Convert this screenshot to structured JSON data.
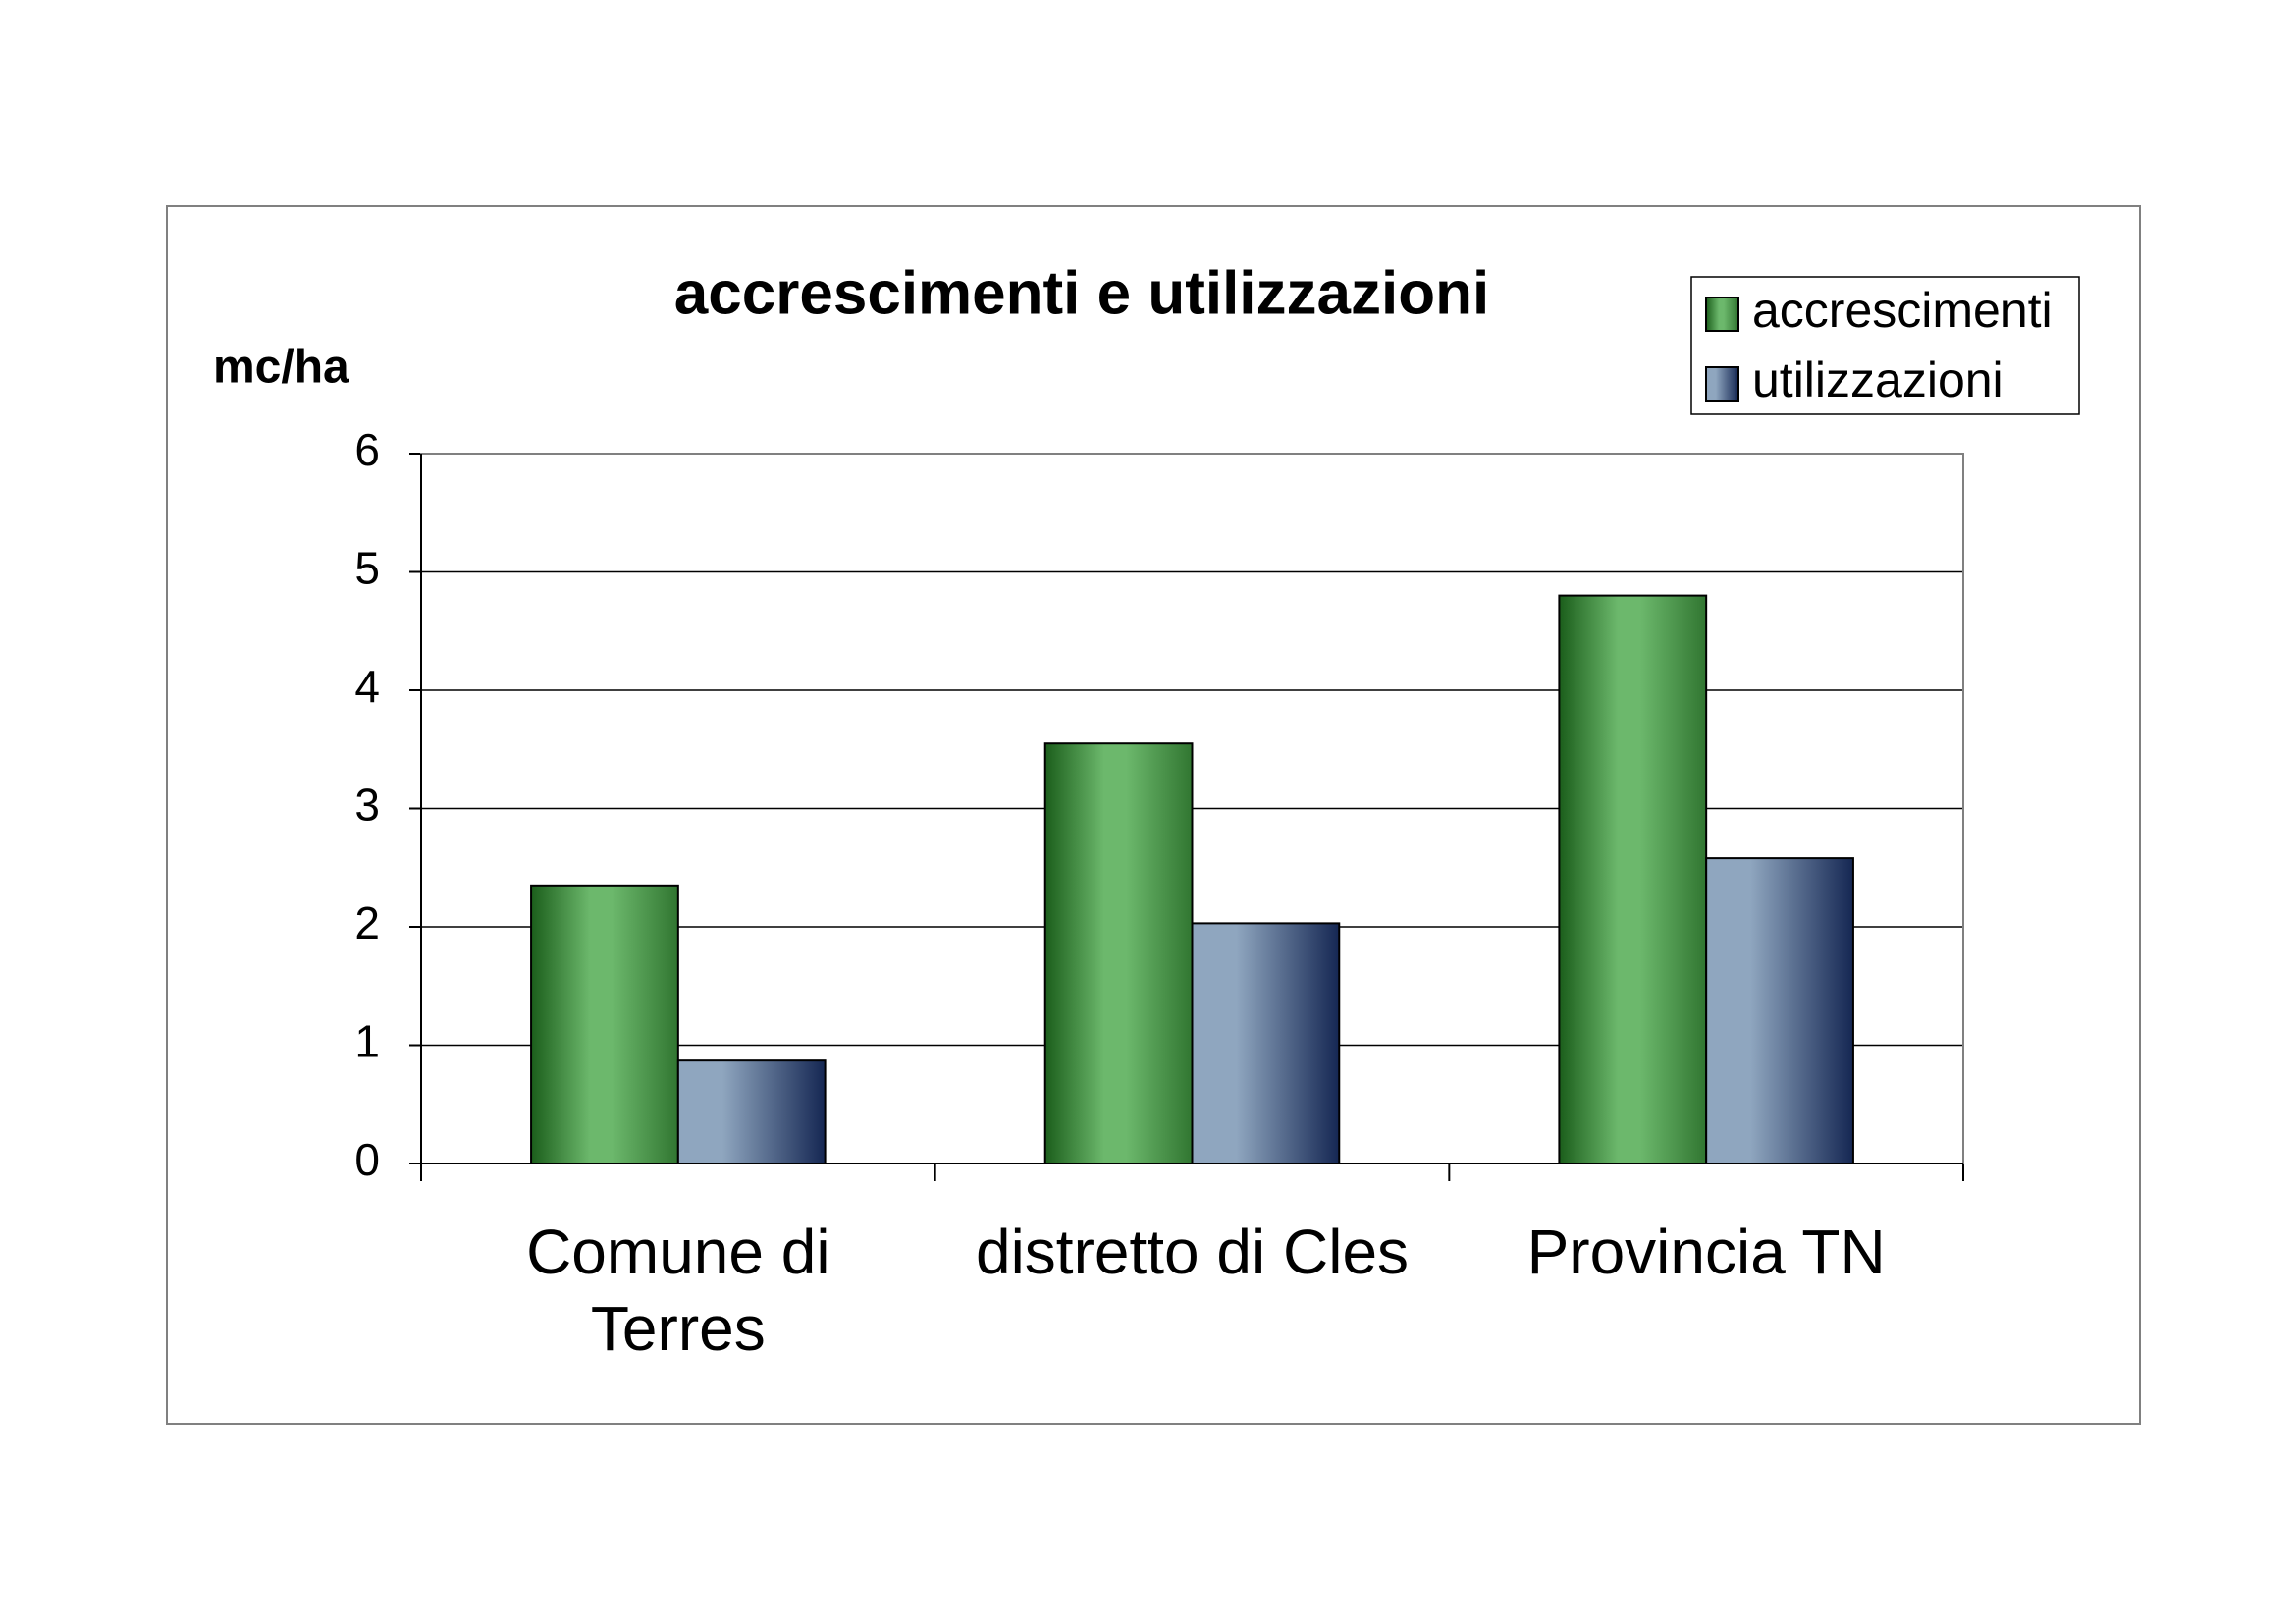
{
  "chart_data": {
    "type": "bar",
    "title": "accrescimenti e utilizzazioni",
    "y_label": "mc/ha",
    "categories": [
      "Comune di Terres",
      "distretto di Cles",
      "Provincia TN"
    ],
    "series": [
      {
        "name": "accrescimenti",
        "color": "#6cb86c",
        "values": [
          2.35,
          3.55,
          4.8
        ]
      },
      {
        "name": "utilizzazioni",
        "color": "#8fa6bf",
        "values": [
          0.87,
          2.03,
          2.58
        ]
      }
    ],
    "ylim": [
      0,
      6
    ],
    "yticks": [
      0,
      1,
      2,
      3,
      4,
      5,
      6
    ],
    "grid": true,
    "legend": "top-right"
  }
}
